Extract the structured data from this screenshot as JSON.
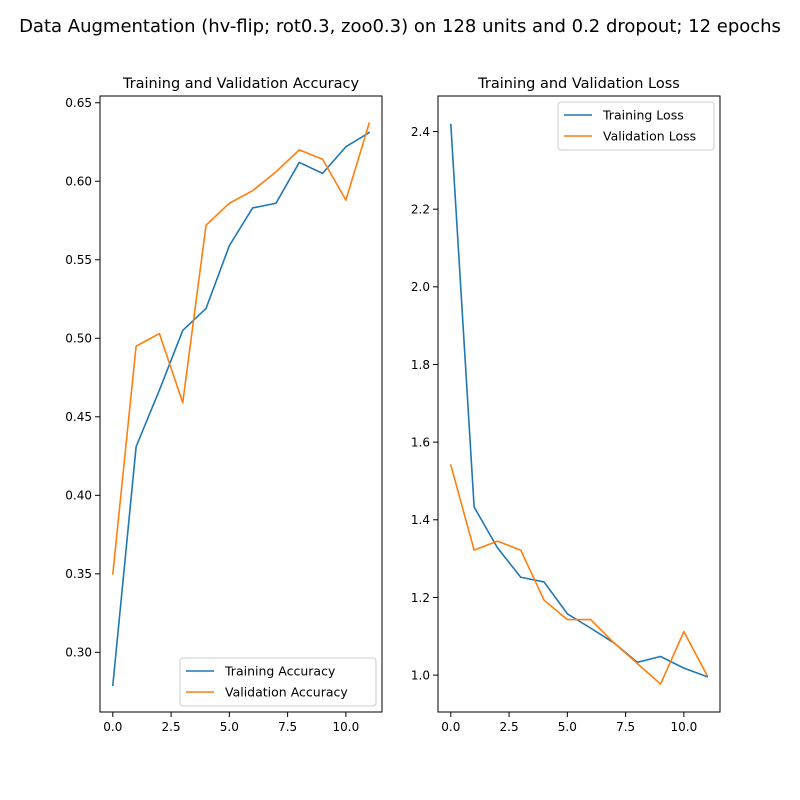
{
  "figure": {
    "suptitle": "Data Augmentation (hv-flip; rot0.3, zoo0.3) on 128 units and 0.2 dropout; 12 epochs"
  },
  "chart_data": [
    {
      "type": "line",
      "title": "Training and Validation Accuracy",
      "xlabel": "",
      "ylabel": "",
      "xlim": [
        -0.55,
        11.55
      ],
      "ylim": [
        0.262,
        0.6543
      ],
      "xticks": [
        0.0,
        2.5,
        5.0,
        7.5,
        10.0
      ],
      "xtick_labels": [
        "0.0",
        "2.5",
        "5.0",
        "7.5",
        "10.0"
      ],
      "yticks": [
        0.3,
        0.35,
        0.4,
        0.45,
        0.5,
        0.55,
        0.6,
        0.65
      ],
      "ytick_labels": [
        "0.30",
        "0.35",
        "0.40",
        "0.45",
        "0.50",
        "0.55",
        "0.60",
        "0.65"
      ],
      "grid": false,
      "legend_position": "lower-right",
      "x": [
        0,
        1,
        2,
        3,
        4,
        5,
        6,
        7,
        8,
        9,
        10,
        11
      ],
      "series": [
        {
          "name": "Training Accuracy",
          "color": "#1f77b4",
          "values": [
            0.279,
            0.431,
            0.467,
            0.505,
            0.519,
            0.559,
            0.583,
            0.586,
            0.612,
            0.605,
            0.622,
            0.631
          ]
        },
        {
          "name": "Validation Accuracy",
          "color": "#ff7f0e",
          "values": [
            0.35,
            0.495,
            0.503,
            0.459,
            0.572,
            0.586,
            0.594,
            0.606,
            0.62,
            0.614,
            0.588,
            0.637
          ]
        }
      ]
    },
    {
      "type": "line",
      "title": "Training and Validation Loss",
      "xlabel": "",
      "ylabel": "",
      "xlim": [
        -0.55,
        11.55
      ],
      "ylim": [
        0.905,
        2.4915
      ],
      "xticks": [
        0.0,
        2.5,
        5.0,
        7.5,
        10.0
      ],
      "xtick_labels": [
        "0.0",
        "2.5",
        "5.0",
        "7.5",
        "10.0"
      ],
      "yticks": [
        1.0,
        1.2,
        1.4,
        1.6,
        1.8,
        2.0,
        2.2,
        2.4
      ],
      "ytick_labels": [
        "1.0",
        "1.2",
        "1.4",
        "1.6",
        "1.8",
        "2.0",
        "2.2",
        "2.4"
      ],
      "grid": false,
      "legend_position": "upper-right",
      "x": [
        0,
        1,
        2,
        3,
        4,
        5,
        6,
        7,
        8,
        9,
        10,
        11
      ],
      "series": [
        {
          "name": "Training Loss",
          "color": "#1f77b4",
          "values": [
            2.418,
            1.433,
            1.328,
            1.252,
            1.24,
            1.158,
            1.121,
            1.083,
            1.033,
            1.048,
            1.018,
            0.996
          ]
        },
        {
          "name": "Validation Loss",
          "color": "#ff7f0e",
          "values": [
            1.541,
            1.322,
            1.345,
            1.322,
            1.193,
            1.143,
            1.143,
            1.083,
            1.03,
            0.977,
            1.112,
            0.999
          ]
        }
      ]
    }
  ]
}
